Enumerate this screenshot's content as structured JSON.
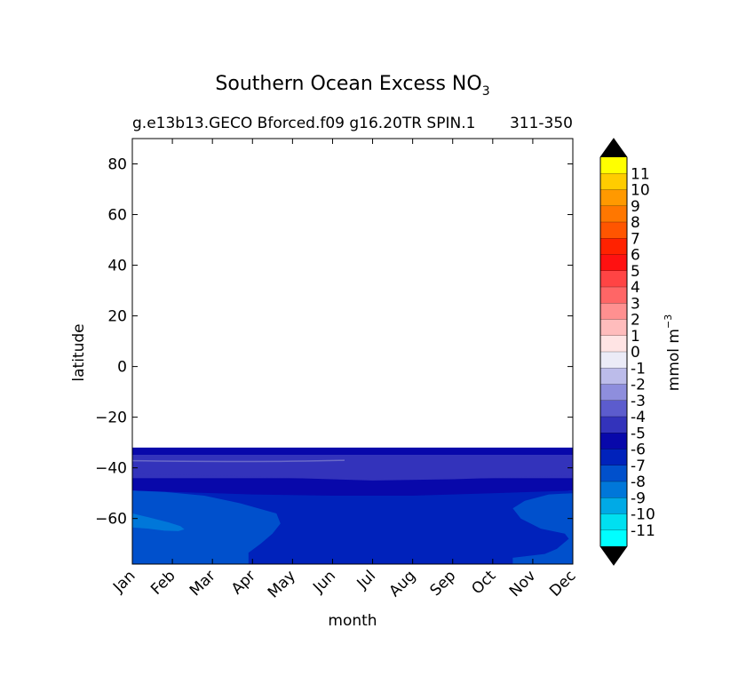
{
  "chart_data": {
    "type": "heatmap",
    "title": "Southern Ocean Excess NO",
    "title_subscript": "3",
    "subtitle_left": "g.e13b13.GECO Bforced.f09 g16.20TR SPIN.1",
    "subtitle_right": "311-350",
    "xlabel": "month",
    "ylabel": "latitude",
    "x_categories": [
      "Jan",
      "Feb",
      "Mar",
      "Apr",
      "May",
      "Jun",
      "Jul",
      "Aug",
      "Sep",
      "Oct",
      "Nov",
      "Dec"
    ],
    "y_ticks": [
      80,
      60,
      40,
      20,
      0,
      -20,
      -40,
      -60
    ],
    "y_tick_labels": [
      "80",
      "60",
      "40",
      "20",
      "0",
      "−20",
      "−40",
      "−60"
    ],
    "ylim": [
      -78,
      90
    ],
    "data_lat_range": [
      -78,
      -32
    ],
    "colorbar": {
      "label": "mmol m",
      "label_superscript": "−3",
      "levels": [
        "11",
        "10",
        "9",
        "8",
        "7",
        "6",
        "5",
        "4",
        "3",
        "2",
        "1",
        "0",
        "-1",
        "-2",
        "-3",
        "-4",
        "-5",
        "-6",
        "-7",
        "-8",
        "-9",
        "-10",
        "-11"
      ],
      "colors": [
        "#ffff00",
        "#ffcc00",
        "#ff9900",
        "#ff7700",
        "#ff5500",
        "#ff2200",
        "#ff1111",
        "#ff4444",
        "#ff6666",
        "#ff9090",
        "#ffbcbc",
        "#ffe4e4",
        "#ebebf7",
        "#bcbcea",
        "#8e8edd",
        "#5c5ccd",
        "#3333bb",
        "#0808aa",
        "#0022bb",
        "#0050cc",
        "#0077d9",
        "#00aae6",
        "#00e0f0",
        "#00ffff"
      ],
      "extend": "both",
      "extend_color": "#000000"
    },
    "regions": [
      {
        "name": "band-north",
        "lat": [
          -35,
          -32
        ],
        "value": -6,
        "color": "#0808aa"
      },
      {
        "name": "band-upper",
        "lat": [
          -44,
          -35
        ],
        "value": -5,
        "color": "#3333bb"
      },
      {
        "name": "band-middle",
        "lat": [
          -49,
          -44
        ],
        "value": -6,
        "color": "#0808aa"
      },
      {
        "name": "band-lower",
        "lat": [
          -78,
          -49
        ],
        "value": -7,
        "color": "#0022bb"
      },
      {
        "name": "patch-west",
        "months": [
          "Jan",
          "Apr"
        ],
        "value": -8,
        "color": "#0050cc"
      },
      {
        "name": "patch-east",
        "months": [
          "Oct",
          "Dec"
        ],
        "value": -8,
        "color": "#0050cc"
      },
      {
        "name": "patch-core",
        "months": [
          "Jan",
          "Feb"
        ],
        "value": -9,
        "color": "#0077d9"
      }
    ],
    "grid": false,
    "legend": "colorbar-right"
  }
}
